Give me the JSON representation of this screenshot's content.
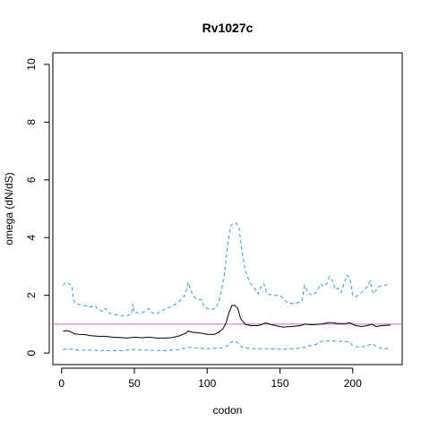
{
  "chart_data": {
    "type": "line",
    "title": "Rv1027c",
    "xlabel": "codon",
    "ylabel": "omega (dN/dS)",
    "xlim": [
      -6,
      234
    ],
    "ylim": [
      -0.4,
      10.4
    ],
    "x_ticks": [
      0,
      50,
      100,
      150,
      200
    ],
    "y_ticks": [
      0,
      2,
      4,
      6,
      8,
      10
    ],
    "reference_line": {
      "y": 1,
      "color": "#cc66cc"
    },
    "colors": {
      "estimate": "#000000",
      "bounds": "#3399dd"
    },
    "series": [
      {
        "key": "upper",
        "style": "dashed",
        "points": [
          [
            1,
            2.35
          ],
          [
            3,
            2.45
          ],
          [
            5,
            2.4
          ],
          [
            7,
            2.35
          ],
          [
            8,
            1.85
          ],
          [
            10,
            1.7
          ],
          [
            15,
            1.65
          ],
          [
            20,
            1.6
          ],
          [
            23,
            1.65
          ],
          [
            25,
            1.5
          ],
          [
            28,
            1.45
          ],
          [
            30,
            1.55
          ],
          [
            32,
            1.4
          ],
          [
            35,
            1.35
          ],
          [
            40,
            1.3
          ],
          [
            45,
            1.3
          ],
          [
            48,
            1.35
          ],
          [
            49,
            1.7
          ],
          [
            50,
            1.4
          ],
          [
            55,
            1.4
          ],
          [
            58,
            1.45
          ],
          [
            60,
            1.55
          ],
          [
            62,
            1.4
          ],
          [
            65,
            1.35
          ],
          [
            70,
            1.5
          ],
          [
            75,
            1.6
          ],
          [
            80,
            1.75
          ],
          [
            84,
            1.95
          ],
          [
            86,
            2.2
          ],
          [
            87,
            2.45
          ],
          [
            88,
            2.3
          ],
          [
            90,
            2.0
          ],
          [
            93,
            1.85
          ],
          [
            96,
            1.85
          ],
          [
            98,
            1.6
          ],
          [
            102,
            1.5
          ],
          [
            106,
            1.55
          ],
          [
            108,
            1.8
          ],
          [
            110,
            2.2
          ],
          [
            112,
            2.8
          ],
          [
            114,
            3.7
          ],
          [
            116,
            4.4
          ],
          [
            118,
            4.5
          ],
          [
            120,
            4.5
          ],
          [
            122,
            4.3
          ],
          [
            124,
            3.5
          ],
          [
            126,
            2.9
          ],
          [
            128,
            2.6
          ],
          [
            130,
            2.4
          ],
          [
            133,
            2.2
          ],
          [
            135,
            2.05
          ],
          [
            137,
            2.3
          ],
          [
            139,
            2.4
          ],
          [
            141,
            2.05
          ],
          [
            145,
            2.0
          ],
          [
            150,
            2.0
          ],
          [
            155,
            1.75
          ],
          [
            160,
            1.7
          ],
          [
            165,
            1.8
          ],
          [
            167,
            2.35
          ],
          [
            169,
            2.1
          ],
          [
            172,
            2.0
          ],
          [
            175,
            2.1
          ],
          [
            178,
            2.4
          ],
          [
            180,
            2.3
          ],
          [
            182,
            2.4
          ],
          [
            184,
            2.65
          ],
          [
            186,
            2.5
          ],
          [
            188,
            2.2
          ],
          [
            190,
            2.25
          ],
          [
            192,
            2.1
          ],
          [
            195,
            2.55
          ],
          [
            196,
            2.7
          ],
          [
            198,
            2.6
          ],
          [
            200,
            2.0
          ],
          [
            202,
            1.95
          ],
          [
            205,
            2.05
          ],
          [
            208,
            2.2
          ],
          [
            210,
            2.3
          ],
          [
            212,
            2.5
          ],
          [
            214,
            2.05
          ],
          [
            218,
            2.3
          ],
          [
            222,
            2.35
          ],
          [
            226,
            2.4
          ]
        ]
      },
      {
        "key": "estimate",
        "style": "solid",
        "points": [
          [
            1,
            0.75
          ],
          [
            3,
            0.78
          ],
          [
            5,
            0.76
          ],
          [
            7,
            0.72
          ],
          [
            9,
            0.66
          ],
          [
            12,
            0.65
          ],
          [
            16,
            0.64
          ],
          [
            20,
            0.6
          ],
          [
            25,
            0.58
          ],
          [
            30,
            0.58
          ],
          [
            35,
            0.55
          ],
          [
            40,
            0.54
          ],
          [
            45,
            0.52
          ],
          [
            50,
            0.55
          ],
          [
            55,
            0.53
          ],
          [
            60,
            0.55
          ],
          [
            65,
            0.52
          ],
          [
            70,
            0.52
          ],
          [
            75,
            0.53
          ],
          [
            80,
            0.58
          ],
          [
            85,
            0.68
          ],
          [
            87,
            0.76
          ],
          [
            90,
            0.72
          ],
          [
            95,
            0.7
          ],
          [
            100,
            0.65
          ],
          [
            105,
            0.65
          ],
          [
            108,
            0.72
          ],
          [
            111,
            0.85
          ],
          [
            113,
            1.05
          ],
          [
            115,
            1.4
          ],
          [
            117,
            1.65
          ],
          [
            119,
            1.65
          ],
          [
            121,
            1.55
          ],
          [
            123,
            1.2
          ],
          [
            126,
            1.0
          ],
          [
            130,
            0.95
          ],
          [
            135,
            0.95
          ],
          [
            138,
            1.0
          ],
          [
            140,
            1.05
          ],
          [
            143,
            1.0
          ],
          [
            147,
            0.95
          ],
          [
            152,
            0.9
          ],
          [
            158,
            0.92
          ],
          [
            164,
            0.95
          ],
          [
            167,
            1.0
          ],
          [
            172,
            0.98
          ],
          [
            178,
            1.0
          ],
          [
            183,
            1.05
          ],
          [
            186,
            1.05
          ],
          [
            190,
            1.02
          ],
          [
            195,
            1.02
          ],
          [
            198,
            1.05
          ],
          [
            202,
            0.95
          ],
          [
            206,
            0.92
          ],
          [
            210,
            0.95
          ],
          [
            213,
            1.0
          ],
          [
            216,
            0.92
          ],
          [
            220,
            0.95
          ],
          [
            226,
            0.97
          ]
        ]
      },
      {
        "key": "lower",
        "style": "dashed",
        "points": [
          [
            1,
            0.12
          ],
          [
            4,
            0.15
          ],
          [
            7,
            0.13
          ],
          [
            12,
            0.1
          ],
          [
            20,
            0.1
          ],
          [
            30,
            0.08
          ],
          [
            40,
            0.08
          ],
          [
            50,
            0.12
          ],
          [
            55,
            0.1
          ],
          [
            60,
            0.1
          ],
          [
            70,
            0.08
          ],
          [
            80,
            0.12
          ],
          [
            87,
            0.2
          ],
          [
            92,
            0.18
          ],
          [
            100,
            0.15
          ],
          [
            110,
            0.18
          ],
          [
            114,
            0.25
          ],
          [
            117,
            0.4
          ],
          [
            119,
            0.42
          ],
          [
            121,
            0.35
          ],
          [
            124,
            0.2
          ],
          [
            130,
            0.15
          ],
          [
            140,
            0.15
          ],
          [
            150,
            0.13
          ],
          [
            160,
            0.15
          ],
          [
            167,
            0.2
          ],
          [
            170,
            0.25
          ],
          [
            175,
            0.3
          ],
          [
            178,
            0.4
          ],
          [
            182,
            0.42
          ],
          [
            188,
            0.42
          ],
          [
            194,
            0.4
          ],
          [
            198,
            0.38
          ],
          [
            200,
            0.25
          ],
          [
            205,
            0.2
          ],
          [
            210,
            0.25
          ],
          [
            213,
            0.33
          ],
          [
            217,
            0.2
          ],
          [
            222,
            0.15
          ],
          [
            226,
            0.18
          ]
        ]
      }
    ]
  }
}
